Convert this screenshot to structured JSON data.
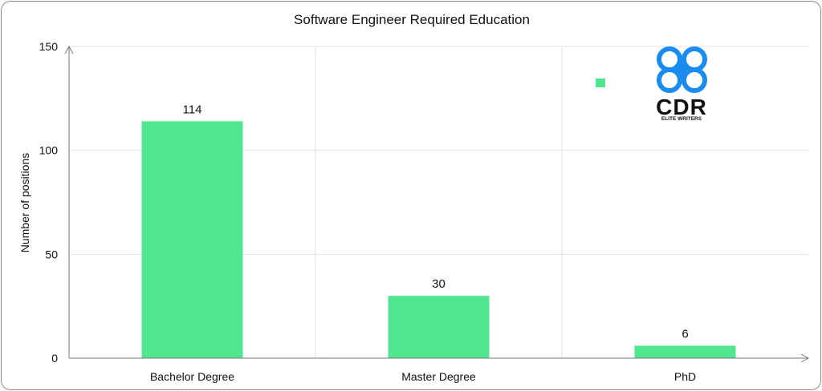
{
  "chart_data": {
    "type": "bar",
    "title": "Software Engineer Required Education",
    "xlabel": "",
    "ylabel": "Number of positions",
    "categories": [
      "Bachelor Degree",
      "Master Degree",
      "PhD"
    ],
    "values": [
      114,
      30,
      6
    ],
    "data_labels": [
      "114",
      "30",
      "6"
    ],
    "ylim": [
      0,
      150
    ],
    "yticks": [
      0,
      50,
      100,
      150
    ],
    "ytick_labels": [
      "0",
      "50",
      "100",
      "150"
    ],
    "grid": true,
    "legend": "top-right",
    "bar_color": "#50e68f"
  },
  "logo": {
    "text": "CDR",
    "tagline": "ELITE WRITERS",
    "color": "#1a8cf0"
  }
}
